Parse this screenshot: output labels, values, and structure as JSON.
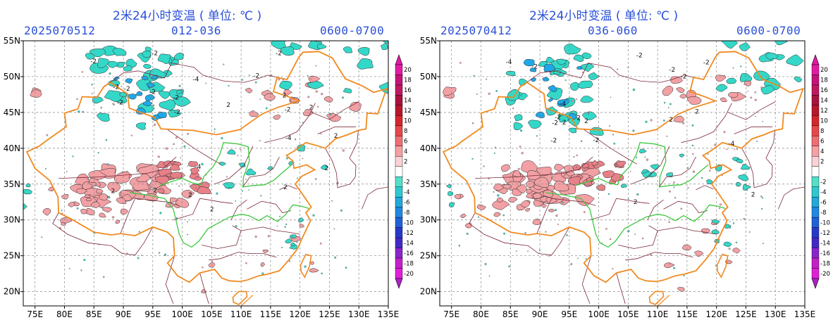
{
  "panels": [
    {
      "title": "2米24小时变温 ( 单位: ℃ )",
      "init_time": "2025070512",
      "forecast_range": "012-036",
      "valid_hours": "0600-0700",
      "contour_labels": [
        "-2",
        "-4",
        "-2",
        "-2",
        "-2",
        "2",
        "2",
        "2",
        "2",
        "-2",
        "-2",
        "-4",
        "-2",
        "2",
        "2",
        "-2",
        "4",
        "2",
        "2",
        "-2",
        "2",
        "-2",
        "-2",
        "2"
      ]
    },
    {
      "title": "2米24小时变温 ( 单位: ℃ )",
      "init_time": "2025070412",
      "forecast_range": "036-060",
      "valid_hours": "0600-0700",
      "contour_labels": [
        "-4",
        "-4",
        "-2",
        "-2",
        "-2",
        "2",
        "2",
        "-2",
        "-2",
        "-4",
        "-2",
        "2",
        "-2",
        "2",
        "2",
        "-2",
        "2",
        "-2",
        "2"
      ]
    }
  ],
  "axes": {
    "x_ticks": [
      "75E",
      "80E",
      "85E",
      "90E",
      "95E",
      "100E",
      "105E",
      "110E",
      "115E",
      "120E",
      "125E",
      "130E",
      "135E"
    ],
    "y_ticks": [
      "55N",
      "50N",
      "45N",
      "40N",
      "35N",
      "30N",
      "25N",
      "20N"
    ]
  },
  "colorbar": {
    "levels": [
      "20",
      "18",
      "16",
      "14",
      "12",
      "10",
      "8",
      "6",
      "4",
      "2",
      "",
      "-2",
      "-4",
      "-6",
      "-8",
      "-10",
      "-12",
      "-14",
      "-16",
      "-18",
      "-20"
    ],
    "colors": [
      "#e31aa4",
      "#c4137a",
      "#c01860",
      "#a8123c",
      "#b8182c",
      "#d6262a",
      "#e8464a",
      "#ef6e72",
      "#f5a0a4",
      "#fbd2d4",
      "#ffffff",
      "#54e0c8",
      "#2ec8d0",
      "#22a8dc",
      "#1f88e0",
      "#2060d8",
      "#2838c8",
      "#4428c8",
      "#8a24cc",
      "#c420c8",
      "#e020d8"
    ],
    "top_color": "#e31aa4",
    "bottom_color": "#b020c8"
  },
  "colors": {
    "warm": "#f2a0a4",
    "cool": "#34d8c8",
    "cool_deep": "#1fa8e8",
    "border_country": "#f08a20",
    "border_province": "#7a2838",
    "river": "#3cc83c",
    "title": "#2a4fd8"
  }
}
